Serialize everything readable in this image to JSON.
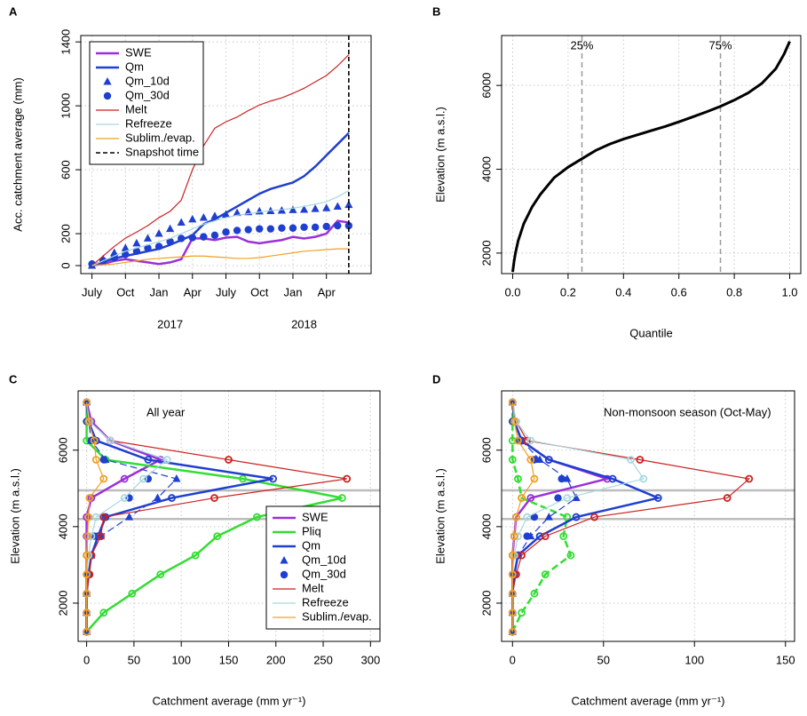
{
  "chart_data": [
    {
      "type": "line",
      "label": "A",
      "ylabel": "Acc. catchment average (mm)",
      "grid": true,
      "legend": "top-left",
      "x": [
        "2016-07",
        "2016-08",
        "2016-09",
        "2016-10",
        "2016-11",
        "2016-12",
        "2017-01",
        "2017-02",
        "2017-03",
        "2017-04",
        "2017-05",
        "2017-06",
        "2017-07",
        "2017-08",
        "2017-09",
        "2017-10",
        "2017-11",
        "2017-12",
        "2018-01",
        "2018-02",
        "2018-03",
        "2018-04",
        "2018-05",
        "2018-06"
      ],
      "xlim": [
        "2016-06",
        "2018-08"
      ],
      "ylim": [
        -50,
        1440
      ],
      "xticks": [
        {
          "value": "2016-07",
          "label": "July"
        },
        {
          "value": "2016-10",
          "label": "Oct"
        },
        {
          "value": "2017-01",
          "label": "Jan"
        },
        {
          "value": "2017-04",
          "label": "Apr"
        },
        {
          "value": "2017-07",
          "label": "July"
        },
        {
          "value": "2017-10",
          "label": "Oct"
        },
        {
          "value": "2018-01",
          "label": "Jan"
        },
        {
          "value": "2018-04",
          "label": "Apr"
        }
      ],
      "xticks_year": [
        {
          "value": "2017-02",
          "label": "2017"
        },
        {
          "value": "2018-02",
          "label": "2018"
        }
      ],
      "yticks": [
        0,
        200,
        600,
        1000,
        1400
      ],
      "series": [
        {
          "name": "SWE",
          "color": "#9b30d9",
          "lwd": 2.5,
          "line": true,
          "marker": null,
          "values": [
            0,
            10,
            30,
            40,
            30,
            20,
            10,
            20,
            40,
            170,
            170,
            160,
            175,
            180,
            150,
            140,
            150,
            160,
            180,
            170,
            180,
            200,
            280,
            270
          ]
        },
        {
          "name": "Qm",
          "color": "#1f3fd0",
          "lwd": 2.5,
          "line": true,
          "marker": null,
          "values": [
            0,
            25,
            45,
            60,
            75,
            90,
            105,
            130,
            160,
            190,
            260,
            290,
            330,
            370,
            410,
            450,
            480,
            500,
            520,
            560,
            620,
            690,
            760,
            830
          ]
        },
        {
          "name": "Qm_10d",
          "color": "#1f3fd0",
          "lwd": 1,
          "line": false,
          "marker": "triangle",
          "values": [
            0,
            40,
            80,
            110,
            140,
            170,
            200,
            230,
            270,
            290,
            300,
            310,
            320,
            330,
            335,
            340,
            342,
            345,
            348,
            350,
            355,
            360,
            370,
            380
          ]
        },
        {
          "name": "Qm_30d",
          "color": "#1f3fd0",
          "lwd": 1,
          "line": false,
          "marker": "circle",
          "values": [
            10,
            30,
            50,
            70,
            90,
            110,
            120,
            150,
            170,
            175,
            180,
            190,
            210,
            220,
            225,
            230,
            230,
            235,
            235,
            240,
            240,
            245,
            250,
            250
          ]
        },
        {
          "name": "Melt",
          "color": "#cc2222",
          "lwd": 1.2,
          "line": true,
          "marker": null,
          "values": [
            0,
            60,
            120,
            172,
            210,
            250,
            300,
            340,
            410,
            600,
            750,
            860,
            900,
            930,
            970,
            1005,
            1030,
            1050,
            1078,
            1110,
            1150,
            1190,
            1250,
            1320
          ]
        },
        {
          "name": "Refreeze",
          "color": "#a8d8e0",
          "lwd": 1.2,
          "line": true,
          "marker": null,
          "values": [
            0,
            30,
            60,
            90,
            110,
            130,
            150,
            170,
            200,
            230,
            260,
            280,
            300,
            315,
            325,
            335,
            345,
            350,
            360,
            370,
            385,
            400,
            430,
            470
          ]
        },
        {
          "name": "Sublim./evap.",
          "color": "#f0a020",
          "lwd": 1.2,
          "line": true,
          "marker": null,
          "values": [
            0,
            5,
            10,
            20,
            30,
            40,
            45,
            50,
            55,
            60,
            60,
            55,
            50,
            45,
            45,
            50,
            60,
            70,
            80,
            90,
            95,
            100,
            105,
            105
          ]
        }
      ],
      "snapshot": {
        "name": "Snapshot time",
        "x": "2018-06",
        "color": "#000000"
      }
    },
    {
      "type": "curve",
      "label": "B",
      "xlabel": "Quantile",
      "ylabel": "Elevation (m a.s.l.)",
      "grid": true,
      "color": "#000000",
      "x": [
        0,
        0.005,
        0.01,
        0.02,
        0.04,
        0.07,
        0.1,
        0.15,
        0.2,
        0.25,
        0.3,
        0.35,
        0.4,
        0.45,
        0.5,
        0.55,
        0.6,
        0.65,
        0.7,
        0.75,
        0.8,
        0.85,
        0.9,
        0.95,
        0.98,
        1.0
      ],
      "values": [
        1550,
        1800,
        2000,
        2300,
        2700,
        3100,
        3400,
        3800,
        4050,
        4250,
        4450,
        4600,
        4720,
        4820,
        4920,
        5020,
        5130,
        5250,
        5370,
        5500,
        5650,
        5820,
        6050,
        6400,
        6750,
        7050
      ],
      "xlim": [
        -0.04,
        1.04
      ],
      "ylim": [
        1510,
        7190
      ],
      "xticks": [
        {
          "value": 0,
          "label": "0.0"
        },
        {
          "value": 0.2,
          "label": "0.2"
        },
        {
          "value": 0.4,
          "label": "0.4"
        },
        {
          "value": 0.6,
          "label": "0.6"
        },
        {
          "value": 0.8,
          "label": "0.8"
        },
        {
          "value": 1,
          "label": "1.0"
        }
      ],
      "yticks": [
        2000,
        4000,
        6000
      ],
      "annotations": [
        {
          "x": 0.25,
          "label": "25%"
        },
        {
          "x": 0.75,
          "label": "75%"
        }
      ]
    },
    {
      "type": "profile",
      "label": "C",
      "note": "All year",
      "xlabel": "Catchment average  (mm yr⁻¹)",
      "ylabel": "Elevation (m a.s.l.)",
      "grid": true,
      "legend": "bottom-right",
      "elevations": [
        1250,
        1750,
        2250,
        2750,
        3250,
        3750,
        4250,
        4750,
        5250,
        5750,
        6250,
        6750,
        7250
      ],
      "xlim": [
        -9,
        310
      ],
      "ylim": [
        1000,
        7550
      ],
      "xticks": [
        0,
        50,
        100,
        150,
        200,
        250,
        300
      ],
      "yticks": [
        2000,
        4000,
        6000
      ],
      "hlines": [
        4200,
        4950
      ],
      "series": [
        {
          "name": "SWE",
          "color": "#9b30d9",
          "lwd": 2.5,
          "line": true,
          "marker": "open-circle",
          "values": [
            0,
            0,
            0,
            0,
            0,
            0,
            0,
            5,
            40,
            78,
            25,
            5,
            0
          ]
        },
        {
          "name": "Pliq",
          "color": "#33dd33",
          "lwd": 2.5,
          "line": true,
          "marker": "open-circle",
          "values": [
            0,
            18,
            48,
            78,
            115,
            138,
            180,
            270,
            165,
            20,
            0,
            0,
            0
          ]
        },
        {
          "name": "Qm",
          "color": "#1f3fd0",
          "lwd": 2.5,
          "line": true,
          "marker": "open-circle",
          "values": [
            0,
            0,
            0,
            2,
            5,
            12,
            20,
            90,
            197,
            65,
            10,
            2,
            0
          ]
        },
        {
          "name": "Qm_10d",
          "color": "#1f3fd0",
          "lwd": 1.2,
          "line": true,
          "dash": true,
          "marker": "triangle",
          "values": [
            0,
            0,
            0,
            2,
            5,
            15,
            45,
            75,
            95,
            20,
            5,
            2,
            0
          ]
        },
        {
          "name": "Qm_30d",
          "color": "#1f3fd0",
          "lwd": 1,
          "line": false,
          "marker": "circle",
          "values": [
            0,
            0,
            0,
            0,
            2,
            8,
            20,
            45,
            65,
            18,
            5,
            0,
            0
          ]
        },
        {
          "name": "Melt",
          "color": "#cc2222",
          "lwd": 1.2,
          "line": true,
          "marker": "open-circle",
          "values": [
            0,
            0,
            0,
            3,
            5,
            15,
            18,
            135,
            275,
            150,
            25,
            3,
            0
          ]
        },
        {
          "name": "Refreeze",
          "color": "#a8d8e0",
          "lwd": 1.2,
          "line": true,
          "marker": "open-circle",
          "values": [
            0,
            0,
            0,
            0,
            2,
            5,
            10,
            40,
            60,
            85,
            25,
            3,
            0
          ]
        },
        {
          "name": "Sublim./evap.",
          "color": "#f0a020",
          "lwd": 1.2,
          "line": true,
          "marker": "open-circle",
          "values": [
            0,
            0,
            0,
            0,
            0,
            1,
            2,
            3,
            18,
            10,
            8,
            2,
            0
          ]
        }
      ]
    },
    {
      "type": "profile",
      "label": "D",
      "note": "Non-monsoon season (Oct-May)",
      "xlabel": "Catchment average  (mm yr⁻¹)",
      "ylabel": "Elevation (m a.s.l.)",
      "grid": true,
      "legend": null,
      "elevations": [
        1250,
        1750,
        2250,
        2750,
        3250,
        3750,
        4250,
        4750,
        5250,
        5750,
        6250,
        6750,
        7250
      ],
      "xlim": [
        -6,
        155
      ],
      "ylim": [
        1000,
        7550
      ],
      "xticks": [
        0,
        50,
        100,
        150
      ],
      "yticks": [
        2000,
        4000,
        6000
      ],
      "hlines": [
        4200,
        4950
      ],
      "series": [
        {
          "name": "SWE",
          "color": "#9b30d9",
          "lwd": 2.5,
          "line": true,
          "marker": "open-circle",
          "values": [
            0,
            0,
            0,
            0,
            0,
            1,
            2,
            10,
            52,
            20,
            5,
            1,
            0
          ]
        },
        {
          "name": "Pliq",
          "color": "#33dd33",
          "lwd": 2.5,
          "line": true,
          "dash": true,
          "marker": "open-circle",
          "values": [
            0,
            5,
            12,
            18,
            32,
            28,
            30,
            5,
            3,
            0,
            0,
            0,
            0
          ]
        },
        {
          "name": "Qm",
          "color": "#1f3fd0",
          "lwd": 2.5,
          "line": true,
          "marker": "open-circle",
          "values": [
            0,
            0,
            0,
            1,
            3,
            15,
            35,
            80,
            55,
            20,
            5,
            1,
            0
          ]
        },
        {
          "name": "Qm_10d",
          "color": "#1f3fd0",
          "lwd": 1.2,
          "line": true,
          "dash": true,
          "marker": "triangle",
          "values": [
            0,
            0,
            0,
            1,
            3,
            10,
            20,
            35,
            30,
            15,
            5,
            1,
            0
          ]
        },
        {
          "name": "Qm_30d",
          "color": "#1f3fd0",
          "lwd": 1,
          "line": false,
          "marker": "circle",
          "values": [
            0,
            0,
            0,
            0,
            2,
            8,
            12,
            25,
            27,
            12,
            4,
            0,
            0
          ]
        },
        {
          "name": "Melt",
          "color": "#cc2222",
          "lwd": 1.2,
          "line": true,
          "marker": "open-circle",
          "values": [
            0,
            0,
            0,
            2,
            5,
            18,
            45,
            118,
            130,
            70,
            8,
            2,
            0
          ]
        },
        {
          "name": "Refreeze",
          "color": "#a8d8e0",
          "lwd": 1.2,
          "line": true,
          "marker": "open-circle",
          "values": [
            0,
            0,
            0,
            0,
            1,
            3,
            8,
            30,
            72,
            65,
            10,
            2,
            0
          ]
        },
        {
          "name": "Sublim./evap.",
          "color": "#f0a020",
          "lwd": 1.2,
          "line": true,
          "marker": "open-circle",
          "values": [
            0,
            0,
            0,
            0,
            0,
            1,
            2,
            5,
            12,
            10,
            3,
            1,
            0
          ]
        }
      ]
    }
  ]
}
